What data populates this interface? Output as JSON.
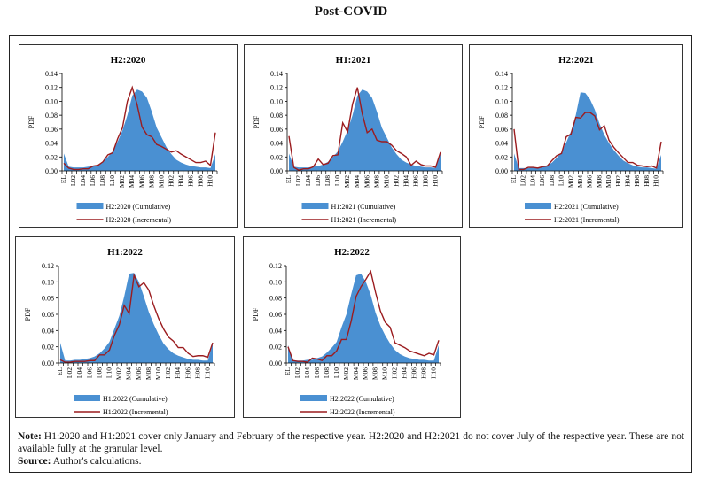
{
  "page": {
    "title": "Post-COVID",
    "note_label": "Note:",
    "note_text": "H1:2020 and H1:2021 cover only January and February of the respective year. H2:2020 and H2:2021 do not cover July of the respective year. These are not available fully at the granular level.",
    "source_label": "Source:",
    "source_text": "Author's calculations."
  },
  "colors": {
    "cumulative": "#4a90d2",
    "incremental": "#9b1c1f"
  },
  "chart_data": [
    {
      "type": "area",
      "title": "H2:2020",
      "ylabel": "PDF",
      "ylim": [
        0,
        0.14
      ],
      "yticks": [
        "0.00",
        "0.02",
        "0.04",
        "0.06",
        "0.08",
        "0.10",
        "0.12",
        "0.14"
      ],
      "categories": [
        "EL",
        "L01",
        "L02",
        "L03",
        "L04",
        "L05",
        "L06",
        "L07",
        "L08",
        "L09",
        "L10",
        "M01",
        "M02",
        "M03",
        "M04",
        "M05",
        "M06",
        "M07",
        "M08",
        "M09",
        "M10",
        "H01",
        "H02",
        "H03",
        "H04",
        "H05",
        "H06",
        "H07",
        "H08",
        "H09",
        "H10",
        "EH"
      ],
      "tick_labels": [
        "EL",
        "",
        "L02",
        "",
        "L04",
        "",
        "L06",
        "",
        "L08",
        "",
        "L10",
        "",
        "M02",
        "",
        "M04",
        "",
        "M06",
        "",
        "M08",
        "",
        "M10",
        "",
        "H02",
        "",
        "H04",
        "",
        "H06",
        "",
        "H08",
        "",
        "H10",
        ""
      ],
      "series": [
        {
          "name": "H2:2020 (Cumulative)",
          "kind": "area",
          "values": [
            0.025,
            0.006,
            0.005,
            0.005,
            0.005,
            0.006,
            0.007,
            0.009,
            0.013,
            0.02,
            0.028,
            0.042,
            0.058,
            0.08,
            0.108,
            0.117,
            0.114,
            0.105,
            0.085,
            0.062,
            0.048,
            0.034,
            0.024,
            0.016,
            0.012,
            0.009,
            0.007,
            0.006,
            0.005,
            0.005,
            0.004,
            0.024
          ]
        },
        {
          "name": "H2:2020 (Incremental)",
          "kind": "line",
          "values": [
            0.011,
            0.004,
            0.002,
            0.002,
            0.003,
            0.003,
            0.007,
            0.008,
            0.013,
            0.023,
            0.026,
            0.046,
            0.062,
            0.1,
            0.12,
            0.095,
            0.063,
            0.052,
            0.049,
            0.038,
            0.035,
            0.031,
            0.027,
            0.029,
            0.024,
            0.02,
            0.016,
            0.012,
            0.012,
            0.014,
            0.008,
            0.055
          ]
        }
      ]
    },
    {
      "type": "area",
      "title": "H1:2021",
      "ylabel": "PDF",
      "ylim": [
        0,
        0.14
      ],
      "yticks": [
        "0.00",
        "0.02",
        "0.04",
        "0.06",
        "0.08",
        "0.10",
        "0.12",
        "0.14"
      ],
      "categories": [
        "EL",
        "L01",
        "L02",
        "L03",
        "L04",
        "L05",
        "L06",
        "L07",
        "L08",
        "L09",
        "L10",
        "M01",
        "M02",
        "M03",
        "M04",
        "M05",
        "M06",
        "M07",
        "M08",
        "M09",
        "M10",
        "H01",
        "H02",
        "H03",
        "H04",
        "H05",
        "H06",
        "H07",
        "H08",
        "H09",
        "H10",
        "EH"
      ],
      "tick_labels": [
        "EL",
        "",
        "L02",
        "",
        "L04",
        "",
        "L06",
        "",
        "L08",
        "",
        "L10",
        "",
        "M02",
        "",
        "M04",
        "",
        "M06",
        "",
        "M08",
        "",
        "M10",
        "",
        "H02",
        "",
        "H04",
        "",
        "H06",
        "",
        "H08",
        "",
        "H10",
        ""
      ],
      "series": [
        {
          "name": "H1:2021 (Cumulative)",
          "kind": "area",
          "values": [
            0.025,
            0.006,
            0.005,
            0.005,
            0.005,
            0.006,
            0.007,
            0.009,
            0.013,
            0.02,
            0.028,
            0.042,
            0.058,
            0.08,
            0.108,
            0.117,
            0.114,
            0.105,
            0.085,
            0.062,
            0.048,
            0.034,
            0.024,
            0.016,
            0.012,
            0.009,
            0.007,
            0.006,
            0.005,
            0.005,
            0.004,
            0.024
          ]
        },
        {
          "name": "H1:2021 (Incremental)",
          "kind": "line",
          "values": [
            0.05,
            0.005,
            0.001,
            0.003,
            0.003,
            0.006,
            0.017,
            0.009,
            0.011,
            0.022,
            0.023,
            0.069,
            0.056,
            0.096,
            0.12,
            0.082,
            0.055,
            0.06,
            0.044,
            0.042,
            0.042,
            0.037,
            0.029,
            0.025,
            0.02,
            0.008,
            0.014,
            0.009,
            0.007,
            0.007,
            0.005,
            0.027
          ]
        }
      ]
    },
    {
      "type": "area",
      "title": "H2:2021",
      "ylabel": "PDF",
      "ylim": [
        0,
        0.14
      ],
      "yticks": [
        "0.00",
        "0.02",
        "0.04",
        "0.06",
        "0.08",
        "0.10",
        "0.12",
        "0.14"
      ],
      "categories": [
        "EL",
        "L01",
        "L02",
        "L03",
        "L04",
        "L05",
        "L06",
        "L07",
        "L08",
        "L09",
        "L10",
        "M01",
        "M02",
        "M03",
        "M04",
        "M05",
        "M06",
        "M07",
        "M08",
        "M09",
        "M10",
        "H01",
        "H02",
        "H03",
        "H04",
        "H05",
        "H06",
        "H07",
        "H08",
        "H09",
        "H10",
        "EH"
      ],
      "tick_labels": [
        "EL",
        "",
        "L02",
        "",
        "L04",
        "",
        "L06",
        "",
        "L08",
        "",
        "L10",
        "",
        "M02",
        "",
        "M04",
        "",
        "M06",
        "",
        "M08",
        "",
        "M10",
        "",
        "H02",
        "",
        "H04",
        "",
        "H06",
        "",
        "H08",
        "",
        "H10",
        ""
      ],
      "series": [
        {
          "name": "H2:2021 (Cumulative)",
          "kind": "area",
          "values": [
            0.025,
            0.004,
            0.004,
            0.004,
            0.005,
            0.005,
            0.006,
            0.008,
            0.012,
            0.019,
            0.027,
            0.041,
            0.057,
            0.08,
            0.113,
            0.112,
            0.103,
            0.088,
            0.068,
            0.052,
            0.04,
            0.03,
            0.022,
            0.015,
            0.011,
            0.008,
            0.006,
            0.005,
            0.005,
            0.004,
            0.003,
            0.023
          ]
        },
        {
          "name": "H2:2021 (Incremental)",
          "kind": "line",
          "values": [
            0.06,
            0.002,
            0.002,
            0.005,
            0.005,
            0.004,
            0.006,
            0.007,
            0.015,
            0.022,
            0.025,
            0.049,
            0.053,
            0.077,
            0.076,
            0.084,
            0.084,
            0.079,
            0.059,
            0.065,
            0.044,
            0.034,
            0.026,
            0.019,
            0.012,
            0.012,
            0.008,
            0.007,
            0.006,
            0.007,
            0.004,
            0.042
          ]
        }
      ]
    },
    {
      "type": "area",
      "title": "H1:2022",
      "ylabel": "PDF",
      "ylim": [
        0,
        0.12
      ],
      "yticks": [
        "0.00",
        "0.02",
        "0.04",
        "0.06",
        "0.08",
        "0.10",
        "0.12"
      ],
      "categories": [
        "EL",
        "L01",
        "L02",
        "L03",
        "L04",
        "L05",
        "L06",
        "L07",
        "L08",
        "L09",
        "L10",
        "M01",
        "M02",
        "M03",
        "M04",
        "M05",
        "M06",
        "M07",
        "M08",
        "M09",
        "M10",
        "H01",
        "H02",
        "H03",
        "H04",
        "H05",
        "H06",
        "H07",
        "H08",
        "H09",
        "H10",
        "EH"
      ],
      "tick_labels": [
        "EL",
        "",
        "L02",
        "",
        "L04",
        "",
        "L06",
        "",
        "L08",
        "",
        "L10",
        "",
        "M02",
        "",
        "M04",
        "",
        "M06",
        "",
        "M08",
        "",
        "M10",
        "",
        "H02",
        "",
        "H04",
        "",
        "H06",
        "",
        "H08",
        "",
        "H10",
        ""
      ],
      "series": [
        {
          "name": "H1:2022 (Cumulative)",
          "kind": "area",
          "values": [
            0.025,
            0.003,
            0.003,
            0.004,
            0.004,
            0.005,
            0.006,
            0.008,
            0.012,
            0.018,
            0.026,
            0.042,
            0.058,
            0.082,
            0.11,
            0.111,
            0.1,
            0.082,
            0.063,
            0.048,
            0.035,
            0.024,
            0.017,
            0.012,
            0.009,
            0.007,
            0.005,
            0.004,
            0.004,
            0.003,
            0.003,
            0.024
          ]
        },
        {
          "name": "H1:2022 (Incremental)",
          "kind": "line",
          "values": [
            0.004,
            0.001,
            0.001,
            0.002,
            0.002,
            0.002,
            0.003,
            0.003,
            0.01,
            0.01,
            0.016,
            0.034,
            0.047,
            0.071,
            0.061,
            0.108,
            0.094,
            0.099,
            0.09,
            0.071,
            0.055,
            0.042,
            0.032,
            0.027,
            0.019,
            0.019,
            0.012,
            0.008,
            0.009,
            0.009,
            0.007,
            0.025
          ]
        }
      ]
    },
    {
      "type": "area",
      "title": "H2:2022",
      "ylabel": "PDF",
      "ylim": [
        0,
        0.12
      ],
      "yticks": [
        "0.00",
        "0.02",
        "0.04",
        "0.06",
        "0.08",
        "0.10",
        "0.12"
      ],
      "categories": [
        "EL",
        "L01",
        "L02",
        "L03",
        "L04",
        "L05",
        "L06",
        "L07",
        "L08",
        "L09",
        "L10",
        "M01",
        "M02",
        "M03",
        "M04",
        "M05",
        "M06",
        "M07",
        "M08",
        "M09",
        "M10",
        "H01",
        "H02",
        "H03",
        "H04",
        "H05",
        "H06",
        "H07",
        "H08",
        "H09",
        "H10",
        "EH"
      ],
      "tick_labels": [
        "EL",
        "",
        "L02",
        "",
        "L04",
        "",
        "L06",
        "",
        "L08",
        "",
        "L10",
        "",
        "M02",
        "",
        "M04",
        "",
        "M06",
        "",
        "M08",
        "",
        "M10",
        "",
        "H02",
        "",
        "H04",
        "",
        "H06",
        "",
        "H08",
        "",
        "H10",
        ""
      ],
      "series": [
        {
          "name": "H2:2022 (Cumulative)",
          "kind": "area",
          "values": [
            0.022,
            0.003,
            0.003,
            0.003,
            0.004,
            0.004,
            0.006,
            0.008,
            0.013,
            0.019,
            0.026,
            0.044,
            0.06,
            0.085,
            0.108,
            0.11,
            0.1,
            0.084,
            0.062,
            0.046,
            0.034,
            0.024,
            0.016,
            0.011,
            0.008,
            0.006,
            0.005,
            0.004,
            0.004,
            0.003,
            0.003,
            0.022
          ]
        },
        {
          "name": "H2:2022 (Incremental)",
          "kind": "line",
          "values": [
            0.02,
            0.003,
            0.002,
            0.002,
            0.001,
            0.006,
            0.005,
            0.003,
            0.009,
            0.009,
            0.015,
            0.029,
            0.029,
            0.052,
            0.082,
            0.094,
            0.103,
            0.113,
            0.087,
            0.064,
            0.05,
            0.044,
            0.025,
            0.022,
            0.019,
            0.015,
            0.013,
            0.011,
            0.009,
            0.012,
            0.01,
            0.028
          ]
        }
      ]
    }
  ]
}
